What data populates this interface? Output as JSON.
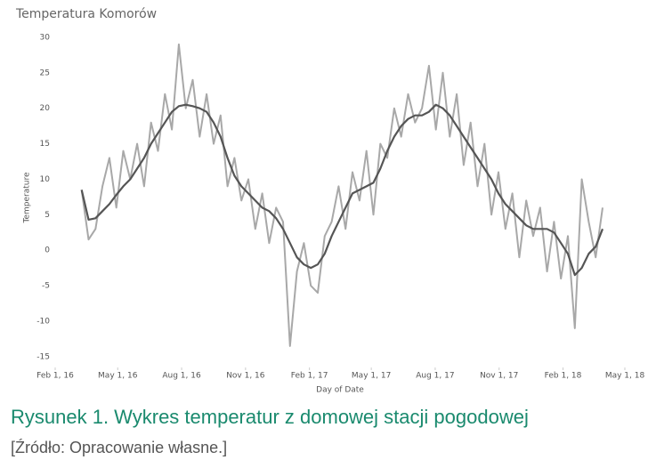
{
  "chart_data": {
    "type": "line",
    "title": "Temperatura Komorów",
    "x_label": "Day of Date",
    "y_label": "Temperature",
    "x": [
      "2016-03-10",
      "2016-03-20",
      "2016-03-30",
      "2016-04-09",
      "2016-04-19",
      "2016-04-29",
      "2016-05-09",
      "2016-05-19",
      "2016-05-29",
      "2016-06-08",
      "2016-06-18",
      "2016-06-28",
      "2016-07-08",
      "2016-07-18",
      "2016-07-28",
      "2016-08-07",
      "2016-08-17",
      "2016-08-27",
      "2016-09-06",
      "2016-09-16",
      "2016-09-26",
      "2016-10-06",
      "2016-10-16",
      "2016-10-26",
      "2016-11-05",
      "2016-11-15",
      "2016-11-25",
      "2016-12-05",
      "2016-12-15",
      "2016-12-25",
      "2017-01-04",
      "2017-01-14",
      "2017-01-24",
      "2017-02-03",
      "2017-02-13",
      "2017-02-23",
      "2017-03-05",
      "2017-03-15",
      "2017-03-25",
      "2017-04-04",
      "2017-04-14",
      "2017-04-24",
      "2017-05-04",
      "2017-05-14",
      "2017-05-24",
      "2017-06-03",
      "2017-06-13",
      "2017-06-23",
      "2017-07-03",
      "2017-07-13",
      "2017-07-23",
      "2017-08-02",
      "2017-08-12",
      "2017-08-22",
      "2017-09-01",
      "2017-09-11",
      "2017-09-21",
      "2017-10-01",
      "2017-10-11",
      "2017-10-21",
      "2017-10-31",
      "2017-11-10",
      "2017-11-20",
      "2017-11-30",
      "2017-12-10",
      "2017-12-20",
      "2017-12-30",
      "2018-01-09",
      "2018-01-19",
      "2018-01-29",
      "2018-02-08",
      "2018-02-18",
      "2018-02-28",
      "2018-03-10",
      "2018-03-20",
      "2018-03-30"
    ],
    "series": [
      {
        "color": "#a8a8a8",
        "width": 2,
        "values": [
          8.5,
          1.5,
          3,
          9,
          13,
          6,
          14,
          10,
          15,
          9,
          18,
          14,
          22,
          17,
          29,
          20,
          24,
          16,
          22,
          15,
          19,
          9,
          13,
          7,
          10,
          3,
          8,
          1,
          6,
          4,
          -13.5,
          -3,
          1,
          -5,
          -6,
          2,
          4,
          9,
          3,
          11,
          7,
          14,
          5,
          15,
          13,
          20,
          16,
          22,
          18,
          20,
          26,
          17,
          25,
          16,
          22,
          12,
          18,
          9,
          15,
          5,
          11,
          3,
          8,
          -1,
          7,
          2,
          6,
          -3,
          4,
          -4,
          2,
          -11,
          10,
          4,
          -1,
          6
        ]
      },
      {
        "color": "#555555",
        "width": 2.2,
        "values": [
          8.5,
          4.3,
          4.5,
          5.5,
          6.5,
          7.8,
          9,
          10,
          11.5,
          13,
          15,
          16.5,
          18,
          19.5,
          20.3,
          20.5,
          20.3,
          20,
          19.5,
          18,
          16,
          13,
          10.5,
          9,
          8,
          7,
          6,
          5.5,
          4.5,
          3,
          1,
          -1,
          -2,
          -2.5,
          -2,
          -0.5,
          2,
          4,
          6,
          8,
          8.5,
          9,
          9.5,
          11.5,
          14,
          16,
          17.5,
          18.5,
          19,
          19,
          19.5,
          20.5,
          20,
          19,
          17.5,
          16,
          14.5,
          13,
          11.5,
          10,
          8,
          6.5,
          5.5,
          4.5,
          3.5,
          3,
          3,
          3,
          2.5,
          1,
          -0.5,
          -3.5,
          -2.5,
          -0.5,
          0.5,
          3
        ]
      }
    ],
    "xlim": [
      "2016-02-01",
      "2018-05-01"
    ],
    "xticks": [
      {
        "value": "2016-02-01",
        "label": "Feb 1, 16"
      },
      {
        "value": "2016-05-01",
        "label": "May 1, 16"
      },
      {
        "value": "2016-08-01",
        "label": "Aug 1, 16"
      },
      {
        "value": "2016-11-01",
        "label": "Nov 1, 16"
      },
      {
        "value": "2017-02-01",
        "label": "Feb 1, 17"
      },
      {
        "value": "2017-05-01",
        "label": "May 1, 17"
      },
      {
        "value": "2017-08-01",
        "label": "Aug 1, 17"
      },
      {
        "value": "2017-11-01",
        "label": "Nov 1, 17"
      },
      {
        "value": "2018-02-01",
        "label": "Feb 1, 18"
      },
      {
        "value": "2018-05-01",
        "label": "May 1, 18"
      }
    ],
    "ylim": [
      -16.4,
      31.5
    ],
    "yticks": [
      -15,
      -10,
      -5,
      0,
      5,
      10,
      15,
      20,
      25,
      30
    ],
    "grid": false
  },
  "caption": {
    "title": "Rysunek 1. Wykres temperatur z domowej stacji pogodowej",
    "source": "[Źródło: Opracowanie własne.]"
  }
}
